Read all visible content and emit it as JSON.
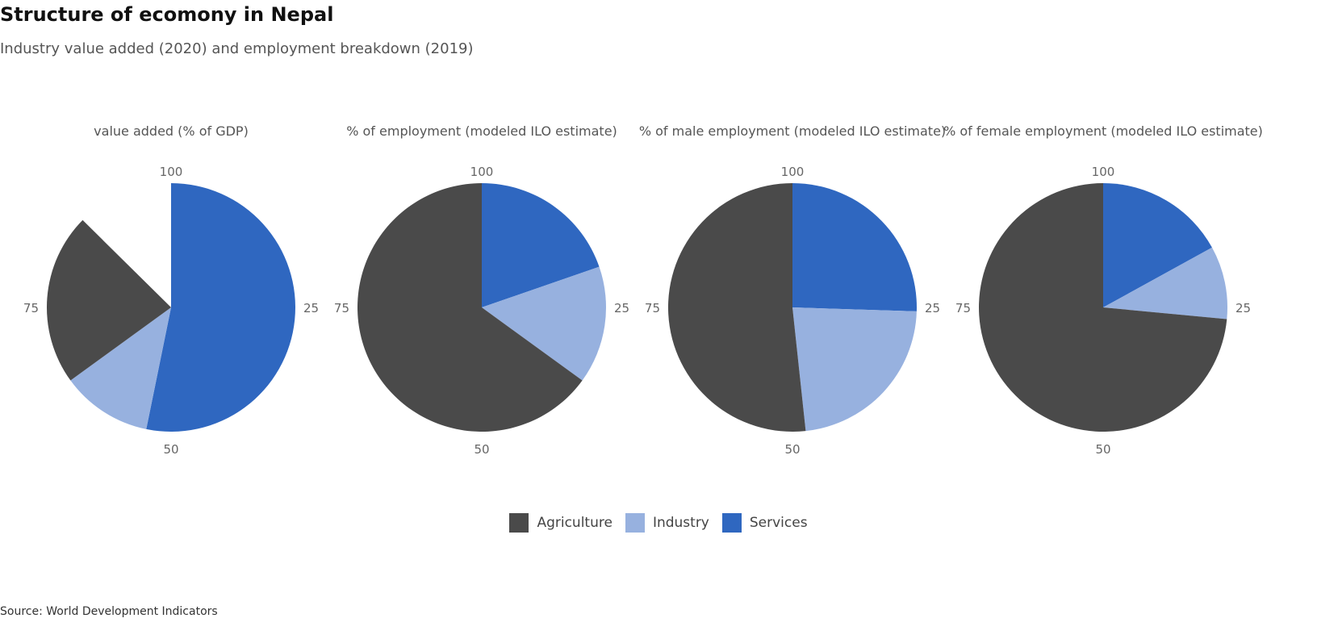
{
  "title": "Structure of ecomony in Nepal",
  "subtitle": "Industry value added (2020) and employment breakdown (2019)",
  "source": "Source: World Development Indicators",
  "colors": {
    "Agriculture": "#4a4a4a",
    "Industry": "#97b1df",
    "Services": "#2f67c0"
  },
  "chart_data": [
    {
      "type": "pie",
      "title": "value added (% of GDP)",
      "ticks": [
        "100",
        "25",
        "50",
        "75"
      ],
      "slices": [
        {
          "name": "Services",
          "value": 53.2
        },
        {
          "name": "Industry",
          "value": 11.8
        },
        {
          "name": "Agriculture",
          "value": 22.4
        }
      ]
    },
    {
      "type": "pie",
      "title": "% of employment (modeled ILO estimate)",
      "ticks": [
        "100",
        "25",
        "50",
        "75"
      ],
      "slices": [
        {
          "name": "Services",
          "value": 19.7
        },
        {
          "name": "Industry",
          "value": 15.3
        },
        {
          "name": "Agriculture",
          "value": 65.0
        }
      ]
    },
    {
      "type": "pie",
      "title": "% of male employment (modeled ILO estimate)",
      "ticks": [
        "100",
        "25",
        "50",
        "75"
      ],
      "slices": [
        {
          "name": "Services",
          "value": 25.5
        },
        {
          "name": "Industry",
          "value": 22.8
        },
        {
          "name": "Agriculture",
          "value": 51.7
        }
      ]
    },
    {
      "type": "pie",
      "title": "% of female employment (modeled ILO estimate)",
      "ticks": [
        "100",
        "25",
        "50",
        "75"
      ],
      "slices": [
        {
          "name": "Services",
          "value": 17.0
        },
        {
          "name": "Industry",
          "value": 9.5
        },
        {
          "name": "Agriculture",
          "value": 73.5
        }
      ]
    }
  ],
  "legend": [
    {
      "name": "Agriculture"
    },
    {
      "name": "Industry"
    },
    {
      "name": "Services"
    }
  ]
}
